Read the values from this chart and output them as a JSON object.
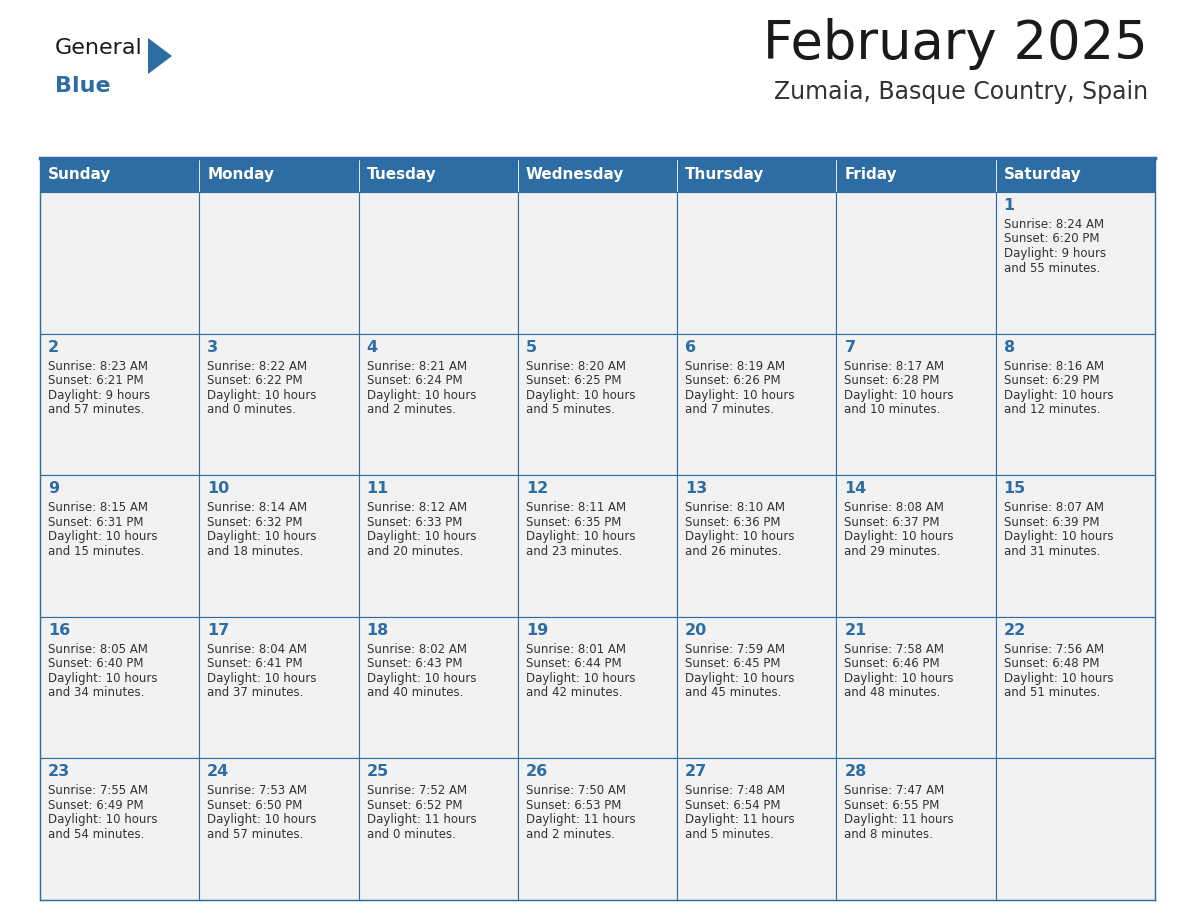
{
  "title": "February 2025",
  "subtitle": "Zumaia, Basque Country, Spain",
  "header_bg": "#2E6DA4",
  "header_text_color": "#FFFFFF",
  "cell_bg": "#F2F2F2",
  "border_color": "#2E6DA4",
  "day_names": [
    "Sunday",
    "Monday",
    "Tuesday",
    "Wednesday",
    "Thursday",
    "Friday",
    "Saturday"
  ],
  "title_color": "#1a1a1a",
  "subtitle_color": "#333333",
  "day_number_color": "#2E6DA4",
  "cell_text_color": "#333333",
  "logo_general_color": "#1a1a1a",
  "logo_blue_color": "#2E6DA4",
  "calendar": [
    [
      null,
      null,
      null,
      null,
      null,
      null,
      {
        "day": "1",
        "sunrise": "8:24 AM",
        "sunset": "6:20 PM",
        "daylight_h": "9 hours",
        "daylight_m": "and 55 minutes."
      }
    ],
    [
      {
        "day": "2",
        "sunrise": "8:23 AM",
        "sunset": "6:21 PM",
        "daylight_h": "9 hours",
        "daylight_m": "and 57 minutes."
      },
      {
        "day": "3",
        "sunrise": "8:22 AM",
        "sunset": "6:22 PM",
        "daylight_h": "10 hours",
        "daylight_m": "and 0 minutes."
      },
      {
        "day": "4",
        "sunrise": "8:21 AM",
        "sunset": "6:24 PM",
        "daylight_h": "10 hours",
        "daylight_m": "and 2 minutes."
      },
      {
        "day": "5",
        "sunrise": "8:20 AM",
        "sunset": "6:25 PM",
        "daylight_h": "10 hours",
        "daylight_m": "and 5 minutes."
      },
      {
        "day": "6",
        "sunrise": "8:19 AM",
        "sunset": "6:26 PM",
        "daylight_h": "10 hours",
        "daylight_m": "and 7 minutes."
      },
      {
        "day": "7",
        "sunrise": "8:17 AM",
        "sunset": "6:28 PM",
        "daylight_h": "10 hours",
        "daylight_m": "and 10 minutes."
      },
      {
        "day": "8",
        "sunrise": "8:16 AM",
        "sunset": "6:29 PM",
        "daylight_h": "10 hours",
        "daylight_m": "and 12 minutes."
      }
    ],
    [
      {
        "day": "9",
        "sunrise": "8:15 AM",
        "sunset": "6:31 PM",
        "daylight_h": "10 hours",
        "daylight_m": "and 15 minutes."
      },
      {
        "day": "10",
        "sunrise": "8:14 AM",
        "sunset": "6:32 PM",
        "daylight_h": "10 hours",
        "daylight_m": "and 18 minutes."
      },
      {
        "day": "11",
        "sunrise": "8:12 AM",
        "sunset": "6:33 PM",
        "daylight_h": "10 hours",
        "daylight_m": "and 20 minutes."
      },
      {
        "day": "12",
        "sunrise": "8:11 AM",
        "sunset": "6:35 PM",
        "daylight_h": "10 hours",
        "daylight_m": "and 23 minutes."
      },
      {
        "day": "13",
        "sunrise": "8:10 AM",
        "sunset": "6:36 PM",
        "daylight_h": "10 hours",
        "daylight_m": "and 26 minutes."
      },
      {
        "day": "14",
        "sunrise": "8:08 AM",
        "sunset": "6:37 PM",
        "daylight_h": "10 hours",
        "daylight_m": "and 29 minutes."
      },
      {
        "day": "15",
        "sunrise": "8:07 AM",
        "sunset": "6:39 PM",
        "daylight_h": "10 hours",
        "daylight_m": "and 31 minutes."
      }
    ],
    [
      {
        "day": "16",
        "sunrise": "8:05 AM",
        "sunset": "6:40 PM",
        "daylight_h": "10 hours",
        "daylight_m": "and 34 minutes."
      },
      {
        "day": "17",
        "sunrise": "8:04 AM",
        "sunset": "6:41 PM",
        "daylight_h": "10 hours",
        "daylight_m": "and 37 minutes."
      },
      {
        "day": "18",
        "sunrise": "8:02 AM",
        "sunset": "6:43 PM",
        "daylight_h": "10 hours",
        "daylight_m": "and 40 minutes."
      },
      {
        "day": "19",
        "sunrise": "8:01 AM",
        "sunset": "6:44 PM",
        "daylight_h": "10 hours",
        "daylight_m": "and 42 minutes."
      },
      {
        "day": "20",
        "sunrise": "7:59 AM",
        "sunset": "6:45 PM",
        "daylight_h": "10 hours",
        "daylight_m": "and 45 minutes."
      },
      {
        "day": "21",
        "sunrise": "7:58 AM",
        "sunset": "6:46 PM",
        "daylight_h": "10 hours",
        "daylight_m": "and 48 minutes."
      },
      {
        "day": "22",
        "sunrise": "7:56 AM",
        "sunset": "6:48 PM",
        "daylight_h": "10 hours",
        "daylight_m": "and 51 minutes."
      }
    ],
    [
      {
        "day": "23",
        "sunrise": "7:55 AM",
        "sunset": "6:49 PM",
        "daylight_h": "10 hours",
        "daylight_m": "and 54 minutes."
      },
      {
        "day": "24",
        "sunrise": "7:53 AM",
        "sunset": "6:50 PM",
        "daylight_h": "10 hours",
        "daylight_m": "and 57 minutes."
      },
      {
        "day": "25",
        "sunrise": "7:52 AM",
        "sunset": "6:52 PM",
        "daylight_h": "11 hours",
        "daylight_m": "and 0 minutes."
      },
      {
        "day": "26",
        "sunrise": "7:50 AM",
        "sunset": "6:53 PM",
        "daylight_h": "11 hours",
        "daylight_m": "and 2 minutes."
      },
      {
        "day": "27",
        "sunrise": "7:48 AM",
        "sunset": "6:54 PM",
        "daylight_h": "11 hours",
        "daylight_m": "and 5 minutes."
      },
      {
        "day": "28",
        "sunrise": "7:47 AM",
        "sunset": "6:55 PM",
        "daylight_h": "11 hours",
        "daylight_m": "and 8 minutes."
      },
      null
    ]
  ]
}
